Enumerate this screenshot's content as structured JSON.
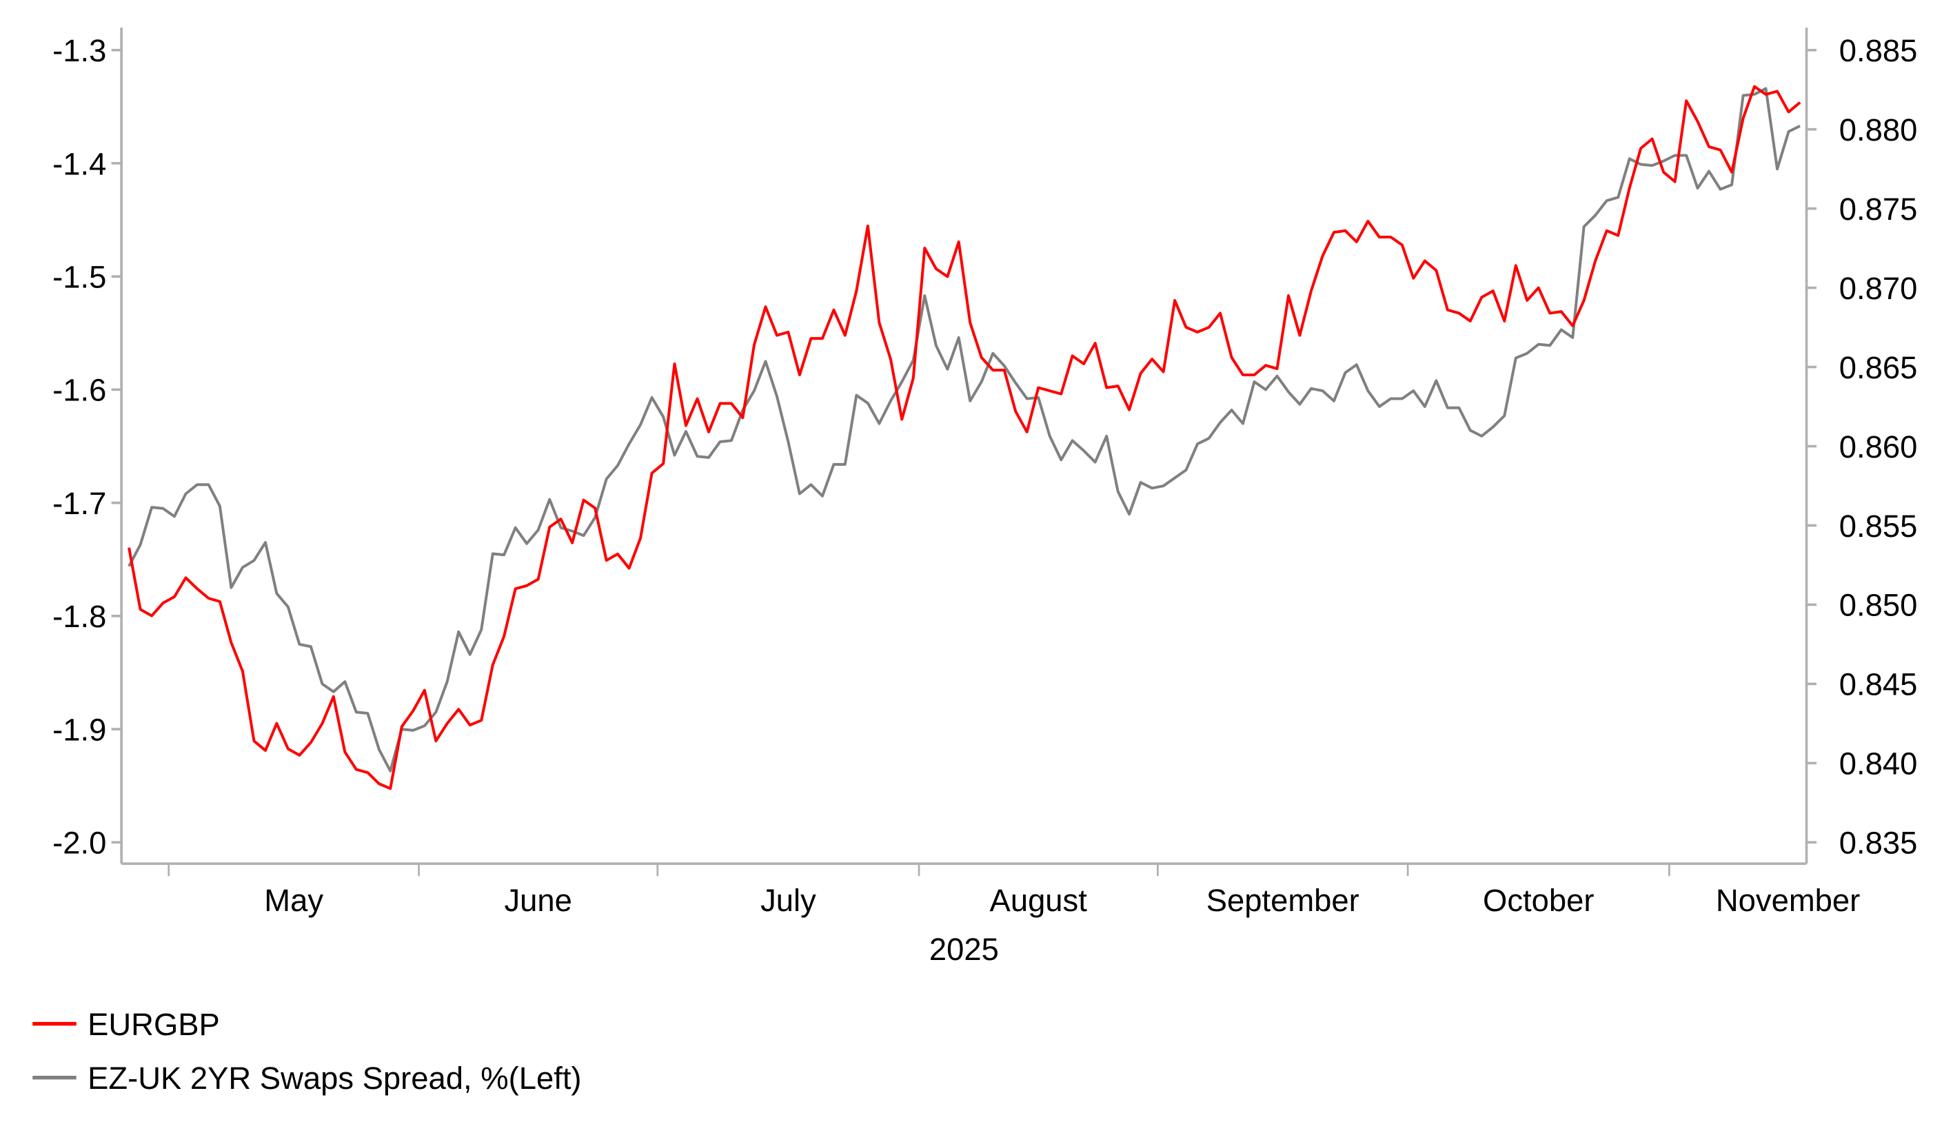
{
  "chart_data": {
    "type": "line",
    "title": "",
    "xlabel": "2025",
    "x_tick_labels": [
      "May",
      "June",
      "July",
      "August",
      "September",
      "October",
      "November"
    ],
    "left_axis": {
      "label": "",
      "ylim": [
        -2.0,
        -1.3
      ],
      "ticks": [
        "-1.3",
        "-1.4",
        "-1.5",
        "-1.6",
        "-1.7",
        "-1.8",
        "-1.9",
        "-2.0"
      ]
    },
    "right_axis": {
      "label": "",
      "ylim": [
        0.835,
        0.885
      ],
      "ticks": [
        "0.885",
        "0.880",
        "0.875",
        "0.870",
        "0.865",
        "0.860",
        "0.855",
        "0.850",
        "0.845",
        "0.840",
        "0.835"
      ]
    },
    "grid": false,
    "legend_position": "bottom-left",
    "dates": [
      "2025-04-25",
      "2025-04-28",
      "2025-04-29",
      "2025-04-30",
      "2025-05-01",
      "2025-05-02",
      "2025-05-05",
      "2025-05-06",
      "2025-05-07",
      "2025-05-08",
      "2025-05-09",
      "2025-05-12",
      "2025-05-13",
      "2025-05-14",
      "2025-05-15",
      "2025-05-16",
      "2025-05-19",
      "2025-05-20",
      "2025-05-21",
      "2025-05-22",
      "2025-05-23",
      "2025-05-26",
      "2025-05-27",
      "2025-05-28",
      "2025-05-29",
      "2025-05-30",
      "2025-06-02",
      "2025-06-03",
      "2025-06-04",
      "2025-06-05",
      "2025-06-06",
      "2025-06-09",
      "2025-06-10",
      "2025-06-11",
      "2025-06-12",
      "2025-06-13",
      "2025-06-16",
      "2025-06-17",
      "2025-06-18",
      "2025-06-19",
      "2025-06-20",
      "2025-06-23",
      "2025-06-24",
      "2025-06-25",
      "2025-06-26",
      "2025-06-27",
      "2025-06-30",
      "2025-07-01",
      "2025-07-02",
      "2025-07-03",
      "2025-07-04",
      "2025-07-07",
      "2025-07-08",
      "2025-07-09",
      "2025-07-10",
      "2025-07-11",
      "2025-07-14",
      "2025-07-15",
      "2025-07-16",
      "2025-07-17",
      "2025-07-18",
      "2025-07-21",
      "2025-07-22",
      "2025-07-23",
      "2025-07-24",
      "2025-07-25",
      "2025-07-28",
      "2025-07-29",
      "2025-07-30",
      "2025-07-31",
      "2025-08-01",
      "2025-08-04",
      "2025-08-05",
      "2025-08-06",
      "2025-08-07",
      "2025-08-08",
      "2025-08-11",
      "2025-08-12",
      "2025-08-13",
      "2025-08-14",
      "2025-08-15",
      "2025-08-18",
      "2025-08-19",
      "2025-08-20",
      "2025-08-21",
      "2025-08-22",
      "2025-08-25",
      "2025-08-26",
      "2025-08-27",
      "2025-08-28",
      "2025-08-29",
      "2025-09-01",
      "2025-09-02",
      "2025-09-03",
      "2025-09-04",
      "2025-09-05",
      "2025-09-08",
      "2025-09-09",
      "2025-09-10",
      "2025-09-11",
      "2025-09-12",
      "2025-09-15",
      "2025-09-16",
      "2025-09-17",
      "2025-09-18",
      "2025-09-19",
      "2025-09-22",
      "2025-09-23",
      "2025-09-24",
      "2025-09-25",
      "2025-09-26",
      "2025-09-29",
      "2025-09-30",
      "2025-10-01",
      "2025-10-02",
      "2025-10-03",
      "2025-10-06",
      "2025-10-07",
      "2025-10-08",
      "2025-10-09",
      "2025-10-10",
      "2025-10-13",
      "2025-10-14",
      "2025-10-15",
      "2025-10-16",
      "2025-10-17",
      "2025-10-20",
      "2025-10-21",
      "2025-10-22",
      "2025-10-23",
      "2025-10-24",
      "2025-10-27",
      "2025-10-28",
      "2025-10-29",
      "2025-10-30",
      "2025-10-31",
      "2025-11-03",
      "2025-11-04",
      "2025-11-05",
      "2025-11-06",
      "2025-11-07",
      "2025-11-10",
      "2025-11-11",
      "2025-11-12",
      "2025-11-13",
      "2025-11-14",
      "2025-11-17",
      "2025-11-18"
    ],
    "series": [
      {
        "name": "EURGBP",
        "axis": "right",
        "color": "#ff0000",
        "values": [
          0.8536,
          0.8497,
          0.8493,
          0.8501,
          0.8505,
          0.8517,
          0.851,
          0.8504,
          0.8502,
          0.8476,
          0.8458,
          0.8414,
          0.8408,
          0.8425,
          0.8409,
          0.8405,
          0.8413,
          0.8425,
          0.8442,
          0.8407,
          0.8396,
          0.8394,
          0.8387,
          0.8384,
          0.8423,
          0.8433,
          0.8446,
          0.8414,
          0.8425,
          0.8434,
          0.8424,
          0.8427,
          0.8462,
          0.848,
          0.851,
          0.8512,
          0.8516,
          0.8549,
          0.8554,
          0.8539,
          0.8566,
          0.8561,
          0.8528,
          0.8532,
          0.8523,
          0.8542,
          0.8583,
          0.8589,
          0.8652,
          0.8613,
          0.863,
          0.8609,
          0.8627,
          0.8627,
          0.8618,
          0.8664,
          0.8688,
          0.867,
          0.8672,
          0.8645,
          0.8668,
          0.8668,
          0.8686,
          0.867,
          0.8698,
          0.8739,
          0.8678,
          0.8655,
          0.8617,
          0.8643,
          0.8725,
          0.8712,
          0.8707,
          0.8729,
          0.8678,
          0.8656,
          0.8648,
          0.8648,
          0.8622,
          0.8609,
          0.8637,
          0.8635,
          0.8633,
          0.8657,
          0.8652,
          0.8665,
          0.8637,
          0.8638,
          0.8623,
          0.8646,
          0.8655,
          0.8647,
          0.8692,
          0.8675,
          0.8672,
          0.8675,
          0.8684,
          0.8656,
          0.8645,
          0.8645,
          0.8651,
          0.8649,
          0.8695,
          0.867,
          0.8698,
          0.872,
          0.8735,
          0.8736,
          0.8729,
          0.8742,
          0.8732,
          0.8732,
          0.8727,
          0.8706,
          0.8717,
          0.8711,
          0.8686,
          0.8684,
          0.8679,
          0.8694,
          0.8698,
          0.8679,
          0.8714,
          0.8692,
          0.87,
          0.8684,
          0.8685,
          0.8676,
          0.8692,
          0.8717,
          0.8736,
          0.8733,
          0.8763,
          0.8788,
          0.8794,
          0.8773,
          0.8767,
          0.8818,
          0.8805,
          0.8789,
          0.8787,
          0.8773,
          0.8807,
          0.8827,
          0.8822,
          0.8824,
          0.8811,
          0.8817
        ]
      },
      {
        "name": "EZ-UK 2YR Swaps Spread, %(Left)",
        "axis": "left",
        "color": "#808080",
        "values": [
          -1.756,
          -1.737,
          -1.704,
          -1.705,
          -1.712,
          -1.692,
          -1.684,
          -1.684,
          -1.703,
          -1.775,
          -1.757,
          -1.751,
          -1.735,
          -1.78,
          -1.792,
          -1.825,
          -1.827,
          -1.86,
          -1.867,
          -1.858,
          -1.885,
          -1.886,
          -1.918,
          -1.937,
          -1.9,
          -1.901,
          -1.897,
          -1.885,
          -1.858,
          -1.814,
          -1.834,
          -1.812,
          -1.745,
          -1.746,
          -1.722,
          -1.736,
          -1.724,
          -1.697,
          -1.722,
          -1.725,
          -1.729,
          -1.713,
          -1.679,
          -1.667,
          -1.648,
          -1.631,
          -1.607,
          -1.624,
          -1.658,
          -1.637,
          -1.659,
          -1.66,
          -1.646,
          -1.645,
          -1.618,
          -1.601,
          -1.575,
          -1.606,
          -1.646,
          -1.692,
          -1.684,
          -1.694,
          -1.666,
          -1.666,
          -1.605,
          -1.612,
          -1.63,
          -1.61,
          -1.593,
          -1.574,
          -1.517,
          -1.561,
          -1.582,
          -1.554,
          -1.61,
          -1.593,
          -1.568,
          -1.579,
          -1.594,
          -1.608,
          -1.607,
          -1.641,
          -1.662,
          -1.645,
          -1.654,
          -1.664,
          -1.641,
          -1.69,
          -1.71,
          -1.682,
          -1.687,
          -1.685,
          -1.678,
          -1.671,
          -1.648,
          -1.643,
          -1.629,
          -1.618,
          -1.63,
          -1.593,
          -1.6,
          -1.588,
          -1.602,
          -1.613,
          -1.599,
          -1.601,
          -1.61,
          -1.585,
          -1.578,
          -1.601,
          -1.615,
          -1.608,
          -1.608,
          -1.601,
          -1.615,
          -1.592,
          -1.616,
          -1.616,
          -1.636,
          -1.641,
          -1.633,
          -1.623,
          -1.572,
          -1.568,
          -1.56,
          -1.561,
          -1.547,
          -1.554,
          -1.456,
          -1.446,
          -1.433,
          -1.43,
          -1.396,
          -1.401,
          -1.402,
          -1.398,
          -1.393,
          -1.393,
          -1.422,
          -1.407,
          -1.423,
          -1.419,
          -1.34,
          -1.339,
          -1.334,
          -1.405,
          -1.372,
          -1.367
        ]
      }
    ]
  }
}
